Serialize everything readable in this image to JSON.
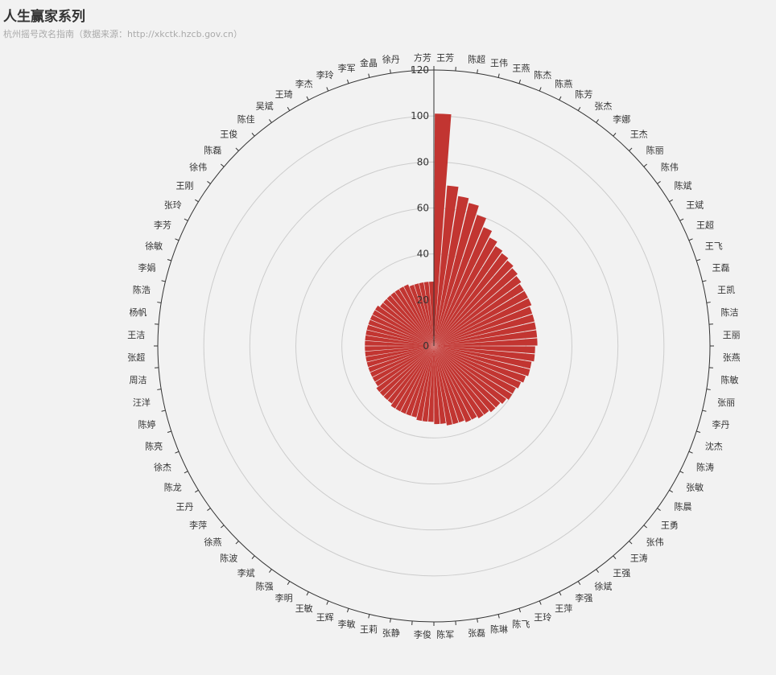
{
  "header": {
    "title": "人生赢家系列",
    "subtitle": "杭州摇号改名指南（数据来源：http://xkctk.hzcb.gov.cn）"
  },
  "colors": {
    "bar": "#c23531",
    "background": "#f2f2f2",
    "grid": "#cccccc",
    "axis": "#333333"
  },
  "chart_data": {
    "type": "bar",
    "coordinate_system": "polar",
    "grid": true,
    "radius_ticks": [
      0,
      20,
      40,
      60,
      80,
      100,
      120
    ],
    "rlim": [
      0,
      120
    ],
    "categories": [
      "王芳",
      "陈超",
      "王伟",
      "王燕",
      "陈杰",
      "陈燕",
      "陈芳",
      "张杰",
      "李娜",
      "王杰",
      "陈丽",
      "陈伟",
      "陈斌",
      "王斌",
      "王超",
      "王飞",
      "王磊",
      "王凯",
      "陈洁",
      "王丽",
      "张燕",
      "陈敏",
      "张丽",
      "李丹",
      "沈杰",
      "陈涛",
      "张敏",
      "陈晨",
      "王勇",
      "张伟",
      "王涛",
      "王强",
      "徐斌",
      "李强",
      "王萍",
      "王玲",
      "陈飞",
      "陈琳",
      "张磊",
      "陈军",
      "李俊",
      "张静",
      "王莉",
      "李敏",
      "王辉",
      "王敏",
      "李明",
      "陈强",
      "李斌",
      "陈波",
      "徐燕",
      "李萍",
      "王丹",
      "陈龙",
      "徐杰",
      "陈亮",
      "陈婷",
      "汪洋",
      "周洁",
      "张超",
      "王洁",
      "杨帆",
      "陈浩",
      "李娟",
      "徐敏",
      "李芳",
      "张玲",
      "王刚",
      "徐伟",
      "陈磊",
      "王俊",
      "陈佳",
      "吴斌",
      "王琦",
      "李杰",
      "李玲",
      "李军",
      "金晶",
      "徐丹",
      "方芳"
    ],
    "values": [
      101,
      70,
      66,
      64,
      60,
      56,
      53,
      51,
      50,
      49,
      48,
      47,
      46,
      46,
      46,
      45,
      45,
      45,
      45,
      45,
      44,
      44,
      43,
      43,
      42,
      41,
      40,
      40,
      39,
      38,
      38,
      37,
      37,
      36,
      36,
      35,
      35,
      35,
      34,
      34,
      33,
      33,
      33,
      32,
      32,
      32,
      32,
      32,
      31,
      31,
      31,
      31,
      30,
      30,
      30,
      30,
      30,
      30,
      30,
      30,
      30,
      30,
      30,
      30,
      30,
      30,
      30,
      30,
      29,
      29,
      29,
      29,
      29,
      29,
      29,
      28,
      28,
      28,
      28,
      28
    ]
  }
}
